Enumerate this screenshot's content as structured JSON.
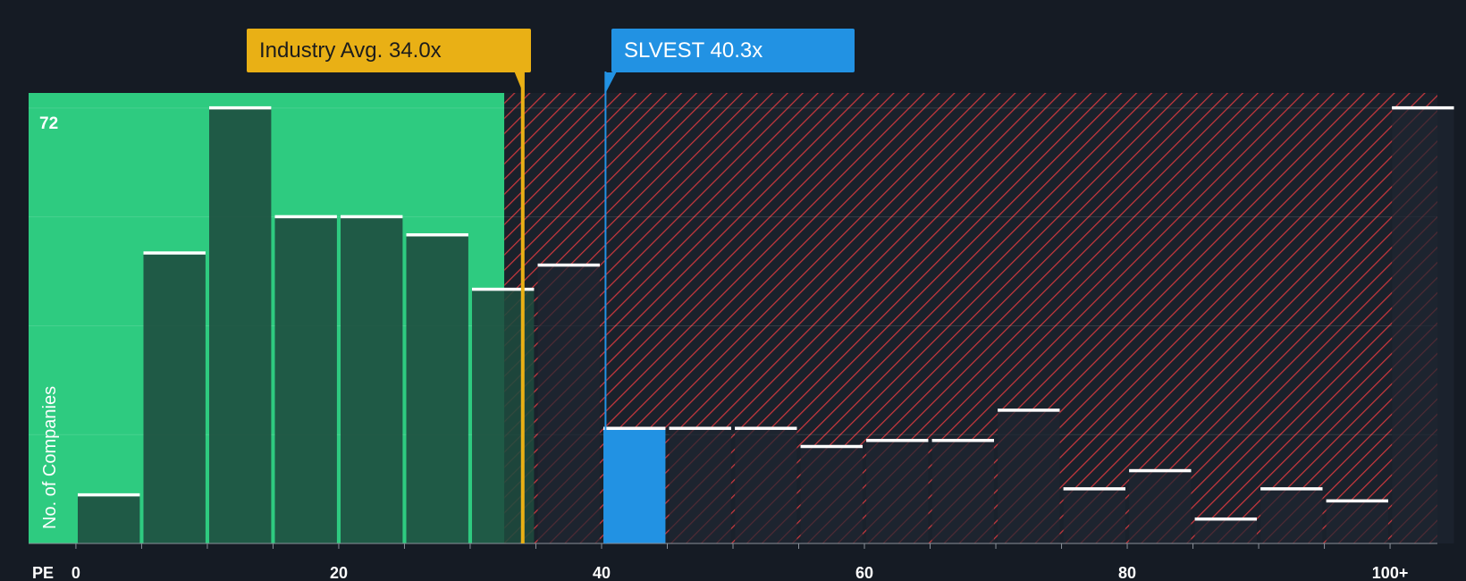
{
  "colors": {
    "background": "#151b24",
    "fair_zone": "#2ecb80",
    "bar_in_zone": "#1e4a3e",
    "bar_out_zone": "#1f2631",
    "hatch": "#c8383e",
    "highlight_bar": "#2292e3",
    "industry_marker": "#e9b015",
    "company_marker": "#2292e3",
    "bar_top": "#ffffff",
    "grid": "#ffffff"
  },
  "chart_data": {
    "type": "bar",
    "title": "",
    "xlabel": "PE",
    "ylabel": "No. of Companies",
    "x_ticks": [
      {
        "value": 0,
        "label": "0"
      },
      {
        "value": 20,
        "label": "20"
      },
      {
        "value": 40,
        "label": "40"
      },
      {
        "value": 60,
        "label": "60"
      },
      {
        "value": 80,
        "label": "80"
      },
      {
        "value": 100,
        "label": "100+"
      }
    ],
    "xlim": [
      -3.6,
      103.6
    ],
    "ylim": [
      0,
      74.5
    ],
    "y_max_label": "72",
    "bin_width": 5,
    "bins": [
      {
        "start": 0,
        "count": 8
      },
      {
        "start": 5,
        "count": 48
      },
      {
        "start": 10,
        "count": 72
      },
      {
        "start": 15,
        "count": 54
      },
      {
        "start": 20,
        "count": 54
      },
      {
        "start": 25,
        "count": 51
      },
      {
        "start": 30,
        "count": 42
      },
      {
        "start": 35,
        "count": 46
      },
      {
        "start": 40,
        "count": 19,
        "highlight": true
      },
      {
        "start": 45,
        "count": 19
      },
      {
        "start": 50,
        "count": 19
      },
      {
        "start": 55,
        "count": 16
      },
      {
        "start": 60,
        "count": 17
      },
      {
        "start": 65,
        "count": 17
      },
      {
        "start": 70,
        "count": 22
      },
      {
        "start": 75,
        "count": 9
      },
      {
        "start": 80,
        "count": 12
      },
      {
        "start": 85,
        "count": 4
      },
      {
        "start": 90,
        "count": 9
      },
      {
        "start": 95,
        "count": 7
      },
      {
        "start": 100,
        "count": 72
      }
    ],
    "fair_zone_end": 32.6,
    "industry_avg": {
      "value": 34.0,
      "label": "Industry Avg. 34.0x"
    },
    "company": {
      "value": 40.3,
      "label": "SLVEST 40.3x"
    },
    "grid": true,
    "y_gridlines": [
      18,
      36,
      54,
      72
    ]
  }
}
